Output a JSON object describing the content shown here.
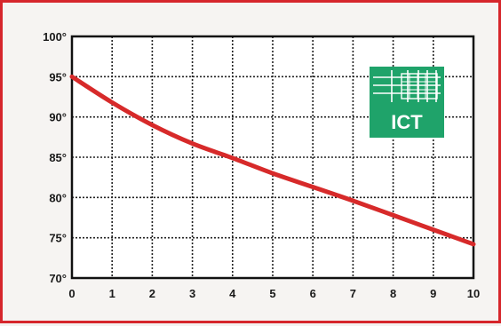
{
  "chart_data": {
    "type": "line",
    "title": "",
    "xlabel": "",
    "ylabel": "",
    "x": [
      0,
      1,
      2,
      3,
      4,
      5,
      6,
      7,
      8,
      9,
      10
    ],
    "series": [
      {
        "values": [
          95.0,
          91.8,
          89.0,
          86.7,
          84.9,
          83.0,
          81.3,
          79.6,
          77.8,
          76.0,
          74.2
        ]
      }
    ],
    "xlim": [
      0,
      10
    ],
    "ylim": [
      70,
      100
    ],
    "x_ticks": [
      "0",
      "1",
      "2",
      "3",
      "4",
      "5",
      "6",
      "7",
      "8",
      "9",
      "10"
    ],
    "y_ticks": [
      "70°",
      "75°",
      "80°",
      "85°",
      "90°",
      "95°",
      "100°"
    ],
    "grid": true,
    "line_color": "#d72a2a",
    "grid_color": "#222222"
  },
  "logo": {
    "text": "ICT",
    "color": "#1fa36a"
  }
}
